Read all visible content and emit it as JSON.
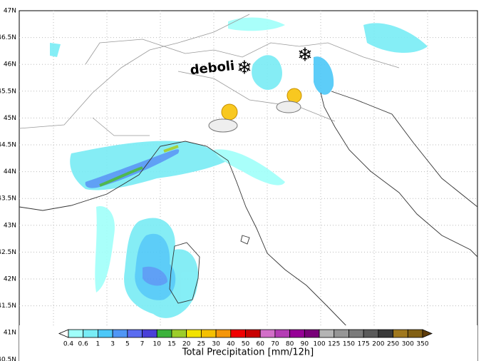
{
  "lat_labels": [
    "47N",
    "46.5N",
    "46N",
    "45.5N",
    "45N",
    "44.5N",
    "44N",
    "43.5N",
    "43N",
    "42.5N",
    "42N",
    "41.5N",
    "41N",
    "40.5N"
  ],
  "annotation": "deboli",
  "colorbar": {
    "title": "Total Precipitation [mm/12h]",
    "labels": [
      0.4,
      0.6,
      1,
      3,
      5,
      7,
      10,
      15,
      20,
      25,
      30,
      40,
      50,
      60,
      70,
      80,
      90,
      100,
      125,
      150,
      175,
      200,
      250,
      300,
      350
    ],
    "colors": [
      "#ffffff",
      "#a0fffa",
      "#78ecf5",
      "#4cc8f8",
      "#4f96f5",
      "#5a6cf0",
      "#4a40d8",
      "#3cb23c",
      "#9ccd2a",
      "#f2e200",
      "#f5c000",
      "#f5960a",
      "#f00000",
      "#c80000",
      "#d26ec8",
      "#b43cb4",
      "#960096",
      "#780078",
      "#b4b4b4",
      "#969696",
      "#7a7a7a",
      "#5a5a5a",
      "#3a3a3a",
      "#a0781e",
      "#826014",
      "#5e3c0a"
    ]
  }
}
